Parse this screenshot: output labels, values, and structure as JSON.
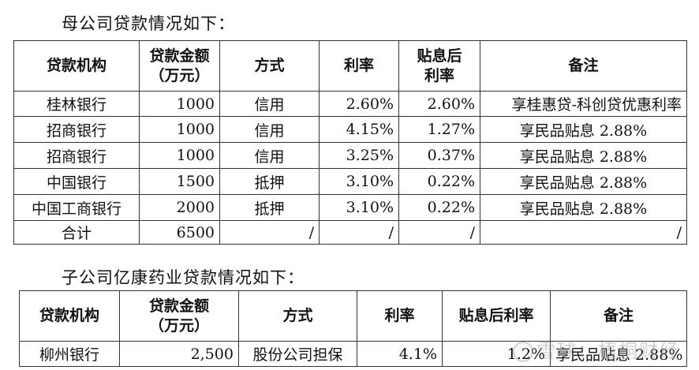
{
  "parent": {
    "caption": "母公司贷款情况如下：",
    "headers": [
      "贷款机构",
      "贷款金额（万元）",
      "方式",
      "利率",
      "贴息后利率",
      "备注"
    ],
    "headers_display": [
      [
        "贷款机构"
      ],
      [
        "贷款金额",
        "（万元）"
      ],
      [
        "方式"
      ],
      [
        "利率"
      ],
      [
        "贴息后",
        "利率"
      ],
      [
        "备注"
      ]
    ],
    "rows": [
      [
        "桂林银行",
        "1000",
        "信用",
        "2.60%",
        "2.60%",
        "享桂惠贷-科创贷优惠利率"
      ],
      [
        "招商银行",
        "1000",
        "信用",
        "4.15%",
        "1.27%",
        "享民品贴息 2.88%"
      ],
      [
        "招商银行",
        "1000",
        "信用",
        "3.25%",
        "0.37%",
        "享民品贴息 2.88%"
      ],
      [
        "中国银行",
        "1500",
        "抵押",
        "3.10%",
        "0.22%",
        "享民品贴息 2.88%"
      ],
      [
        "中国工商银行",
        "2000",
        "抵押",
        "3.10%",
        "0.22%",
        "享民品贴息 2.88%"
      ],
      [
        "合计",
        "6500",
        "/",
        "/",
        "/",
        "/"
      ]
    ]
  },
  "subsidiary": {
    "caption": "子公司亿康药业贷款情况如下：",
    "headers": [
      "贷款机构",
      "贷款金额（万元）",
      "方式",
      "利率",
      "贴息后利率",
      "备注"
    ],
    "headers_display": [
      [
        "贷款机构"
      ],
      [
        "贷款金额",
        "（万元）"
      ],
      [
        "方式"
      ],
      [
        "利率"
      ],
      [
        "贴息后利率"
      ],
      [
        "备注"
      ]
    ],
    "rows": [
      [
        "柳州银行",
        "2,500",
        "股份公司担保",
        "4.1%",
        "1.2%",
        "享民品贴息 2.88%"
      ]
    ]
  },
  "watermark": "雪球：梧桐财经"
}
